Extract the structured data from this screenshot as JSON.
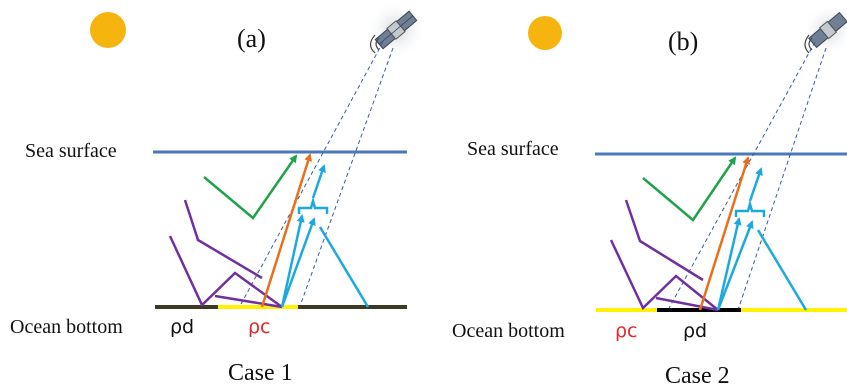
{
  "panels": [
    {
      "tag": "(a)",
      "surface_label": "Sea surface",
      "bottom_label": "Ocean bottom",
      "rho_left": "ρd",
      "rho_right": "ρc",
      "caption": "Case 1"
    },
    {
      "tag": "(b)",
      "surface_label": "Sea surface",
      "bottom_label": "Ocean bottom",
      "rho_left": "ρc",
      "rho_right": "ρd",
      "caption": "Case 2"
    }
  ],
  "icons": {
    "sun": "sun-icon",
    "satellite": "satellite-icon"
  },
  "colors": {
    "sun": "#F6B40F",
    "sea_surface": "#4A78B8",
    "dark_bottom": "#3C3A22",
    "bright_bottom": "#FFF200",
    "black_bottom": "#000000",
    "rho_red": "#E8262A",
    "rho_black": "#111111",
    "ray_purple": "#7030A0",
    "ray_green": "#1FA34A",
    "ray_orange": "#E8701A",
    "ray_cyan": "#1BA9E0",
    "fov_dash": "#3A5BA0"
  }
}
